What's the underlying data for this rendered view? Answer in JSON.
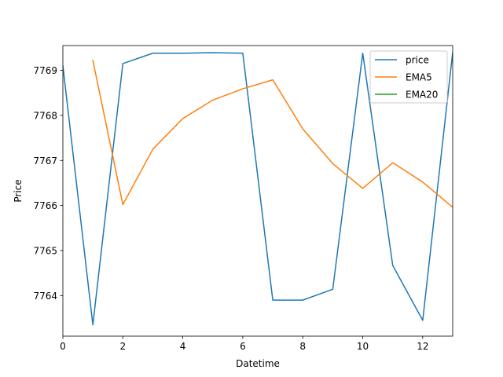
{
  "chart_data": {
    "type": "line",
    "xlabel": "Datetime",
    "ylabel": "Price",
    "xlim": [
      0,
      13
    ],
    "ylim": [
      7763.1,
      7769.55
    ],
    "xticks": [
      0,
      2,
      4,
      6,
      8,
      10,
      12
    ],
    "yticks": [
      7764,
      7765,
      7766,
      7767,
      7768,
      7769
    ],
    "grid": false,
    "legend_position": "top-right",
    "series": [
      {
        "name": "price",
        "color": "#1f77b4",
        "x": [
          0,
          1,
          2,
          3,
          4,
          5,
          6,
          7,
          8,
          9,
          10,
          11,
          12,
          13
        ],
        "values": [
          7769.1,
          7763.35,
          7769.15,
          7769.38,
          7769.38,
          7769.39,
          7769.38,
          7763.9,
          7763.9,
          7764.14,
          7769.38,
          7764.67,
          7763.45,
          7769.4
        ]
      },
      {
        "name": "EMA5",
        "color": "#ff7f0e",
        "x": [
          1,
          2,
          3,
          4,
          5,
          6,
          7,
          8,
          9,
          10,
          11,
          12,
          13
        ],
        "values": [
          7769.22,
          7766.02,
          7767.25,
          7767.93,
          7768.34,
          7768.59,
          7768.79,
          7767.7,
          7766.93,
          7766.38,
          7766.95,
          7766.52,
          7765.96
        ]
      },
      {
        "name": "EMA20",
        "color": "#2ca02c",
        "x": [],
        "values": []
      }
    ]
  }
}
